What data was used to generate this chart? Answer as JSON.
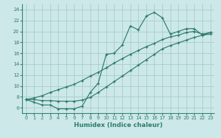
{
  "xlabel": "Humidex (Indice chaleur)",
  "background_color": "#cce8e8",
  "grid_color": "#aacfcf",
  "line_color": "#2e7b6b",
  "xlim": [
    -0.5,
    23.5
  ],
  "ylim": [
    5.0,
    25.0
  ],
  "yticks": [
    6,
    8,
    10,
    12,
    14,
    16,
    18,
    20,
    22,
    24
  ],
  "xticks": [
    0,
    1,
    2,
    3,
    4,
    5,
    6,
    7,
    8,
    9,
    10,
    11,
    12,
    13,
    14,
    15,
    16,
    17,
    18,
    19,
    20,
    21,
    22,
    23
  ],
  "hours": [
    0,
    1,
    2,
    3,
    4,
    5,
    6,
    7,
    8,
    9,
    10,
    11,
    12,
    13,
    14,
    15,
    16,
    17,
    18,
    19,
    20,
    21,
    22,
    23
  ],
  "line1": [
    7.5,
    7.0,
    6.5,
    6.5,
    5.8,
    5.8,
    5.8,
    6.3,
    8.8,
    10.5,
    15.8,
    16.0,
    17.5,
    21.0,
    20.3,
    22.8,
    23.5,
    22.5,
    19.5,
    20.0,
    20.5,
    20.5,
    19.3,
    19.8
  ],
  "line2": [
    7.5,
    7.8,
    8.2,
    8.8,
    9.3,
    9.8,
    10.3,
    11.0,
    11.8,
    12.5,
    13.3,
    14.2,
    15.0,
    15.8,
    16.5,
    17.2,
    17.8,
    18.5,
    19.0,
    19.3,
    19.8,
    20.0,
    19.5,
    19.8
  ],
  "line3": [
    7.5,
    7.5,
    7.3,
    7.3,
    7.2,
    7.2,
    7.2,
    7.4,
    7.9,
    8.8,
    9.8,
    10.8,
    11.8,
    12.8,
    13.8,
    14.8,
    15.8,
    16.8,
    17.4,
    17.9,
    18.4,
    18.9,
    19.3,
    19.5
  ]
}
